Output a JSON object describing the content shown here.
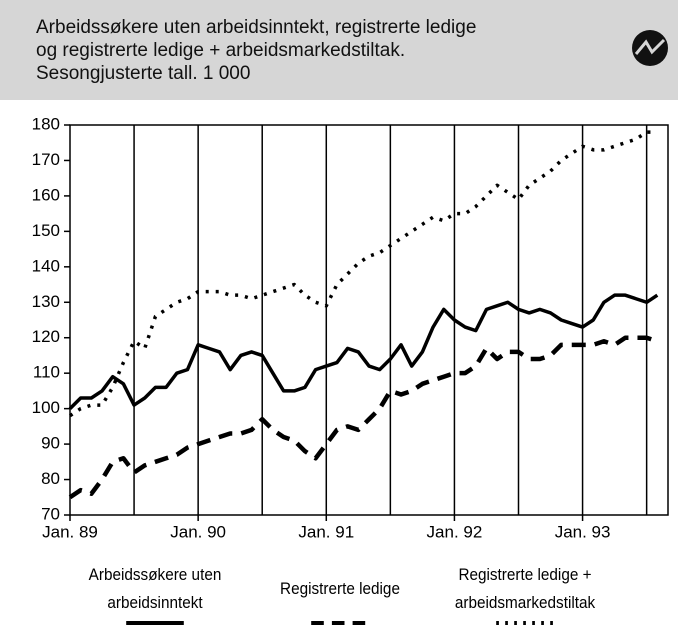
{
  "chart_data": {
    "type": "line",
    "title": [
      "Arbeidssøkere uten arbeidsinntekt, registrerte ledige",
      "og registrerte ledige + arbeidsmarkedstiltak.",
      "Sesongjusterte tall. 1 000"
    ],
    "x": [
      0,
      1,
      2,
      3,
      4,
      5,
      6,
      7,
      8,
      9,
      10,
      11,
      12,
      13,
      14,
      15,
      16,
      17,
      18,
      19,
      20,
      21,
      22,
      23,
      24,
      25,
      26,
      27,
      28,
      29,
      30,
      31,
      32,
      33,
      34,
      35,
      36,
      37,
      38,
      39,
      40,
      41,
      42,
      43,
      44,
      45,
      46,
      47,
      48,
      49,
      50,
      51,
      52,
      53,
      54,
      55
    ],
    "xlim": [
      0,
      56
    ],
    "xticks": [
      {
        "value": 0,
        "label": "Jan. 89"
      },
      {
        "value": 12,
        "label": "Jan. 90"
      },
      {
        "value": 24,
        "label": "Jan. 91"
      },
      {
        "value": 36,
        "label": "Jan. 92"
      },
      {
        "value": 48,
        "label": "Jan. 93"
      }
    ],
    "xgrid": [
      6,
      12,
      18,
      24,
      30,
      36,
      42,
      48,
      54
    ],
    "ylim": [
      70,
      180
    ],
    "yticks": [
      70,
      80,
      90,
      100,
      110,
      120,
      130,
      140,
      150,
      160,
      170,
      180
    ],
    "series": [
      {
        "name": "Arbeidssøkere uten arbeidsinntekt",
        "color": "#000000",
        "style": "solid",
        "values": [
          100,
          103,
          103,
          105,
          109,
          107,
          101,
          103,
          106,
          106,
          110,
          111,
          118,
          117,
          116,
          111,
          115,
          116,
          115,
          110,
          105,
          105,
          106,
          111,
          112,
          113,
          117,
          116,
          112,
          111,
          114,
          118,
          112,
          116,
          123,
          128,
          125,
          123,
          122,
          128,
          129,
          130,
          128,
          127,
          128,
          127,
          125,
          124,
          123,
          125,
          130,
          132,
          132,
          131,
          130,
          132
        ]
      },
      {
        "name": "Registrerte ledige",
        "color": "#000000",
        "style": "dashed",
        "values": [
          75,
          77,
          76,
          80,
          85,
          86,
          82,
          84,
          85,
          86,
          87,
          89,
          90,
          91,
          92,
          93,
          93,
          94,
          97,
          94,
          92,
          91,
          88,
          86,
          90,
          94,
          95,
          94,
          97,
          100,
          105,
          104,
          105,
          107,
          108,
          109,
          110,
          110,
          112,
          117,
          114,
          116,
          116,
          114,
          114,
          115,
          118,
          118,
          118,
          118,
          119,
          118,
          120,
          120,
          120,
          119
        ]
      },
      {
        "name": "Registrerte ledige + arbeidsmarkedstiltak",
        "color": "#000000",
        "style": "dotted",
        "values": [
          98,
          100,
          101,
          101,
          106,
          113,
          119,
          117,
          126,
          128,
          130,
          131,
          133,
          133,
          133,
          132,
          132,
          131,
          132,
          133,
          134,
          135,
          132,
          130,
          129,
          135,
          138,
          141,
          143,
          144,
          146,
          148,
          150,
          152,
          154,
          153,
          155,
          155,
          157,
          160,
          163,
          161,
          159,
          163,
          165,
          167,
          170,
          172,
          174,
          173,
          173,
          174,
          175,
          176,
          178,
          178
        ]
      }
    ]
  }
}
